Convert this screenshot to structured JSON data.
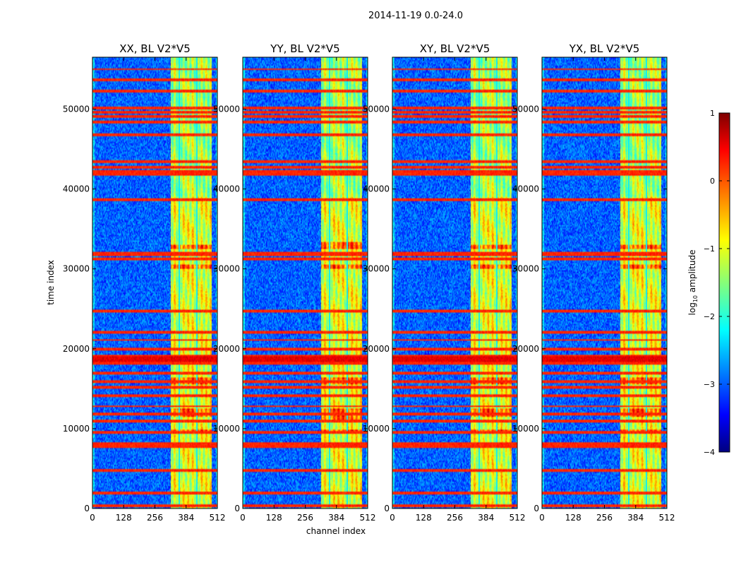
{
  "chart_data": {
    "type": "heatmap",
    "suptitle": "2014-11-19 0.0-24.0",
    "xlabel": "channel index",
    "ylabel": "time index",
    "xlim": [
      0,
      512
    ],
    "ylim": [
      0,
      56500
    ],
    "xticks": [
      "0",
      "128",
      "256",
      "384",
      "512"
    ],
    "xtick_values": [
      0,
      128,
      256,
      384,
      512
    ],
    "yticks": [
      "0",
      "10000",
      "20000",
      "30000",
      "40000",
      "50000"
    ],
    "ytick_values": [
      0,
      10000,
      20000,
      30000,
      40000,
      50000
    ],
    "colorbar": {
      "label": "log10 amplitude",
      "label_base": "log",
      "label_sub": "10",
      "label_rest": " amplitude",
      "range": [
        -4,
        1
      ],
      "ticks": [
        "1",
        "0",
        "−1",
        "−2",
        "−3",
        "−4"
      ],
      "tick_values": [
        1,
        0,
        -1,
        -2,
        -3,
        -4
      ],
      "colors": [
        "#00007f",
        "#0000ff",
        "#007fff",
        "#00ffff",
        "#7fff7f",
        "#ffff00",
        "#ff7f00",
        "#ff0000",
        "#7f0000"
      ]
    },
    "panels": [
      {
        "title": "XX, BL V2*V5",
        "features": {
          "flag_band_extra": [],
          "bright_extra": []
        }
      },
      {
        "title": "YY, BL V2*V5",
        "features": {
          "flag_band_extra": [
            11000
          ],
          "bright_extra": [
            33000,
            11200
          ]
        }
      },
      {
        "title": "XY, BL V2*V5",
        "features": {
          "flag_band_extra": [],
          "bright_extra": []
        }
      },
      {
        "title": "YX, BL V2*V5",
        "features": {
          "flag_band_extra": [],
          "bright_extra": []
        }
      }
    ],
    "common_features": {
      "background_level": -2.9,
      "active_channels": [
        [
          320,
          490,
          -1.0
        ]
      ],
      "flagged_times": [
        300,
        2000,
        4700,
        7800,
        8100,
        9600,
        11000,
        11800,
        12800,
        14200,
        15200,
        15900,
        16900,
        18200,
        18700,
        19100,
        20000,
        21100,
        22000,
        24800,
        31300,
        31800,
        32000,
        38600,
        41800,
        42200,
        42800,
        43400,
        46800,
        48300,
        49100,
        49600,
        50200,
        52200,
        53700,
        55000
      ],
      "strong_band": [
        18300,
        19000,
        0.6
      ],
      "hot_blocks": [
        [
          32500,
          33000
        ],
        [
          15500,
          16500
        ],
        [
          11500,
          12500
        ],
        [
          9300,
          9800
        ],
        [
          30000,
          30500
        ]
      ]
    }
  }
}
